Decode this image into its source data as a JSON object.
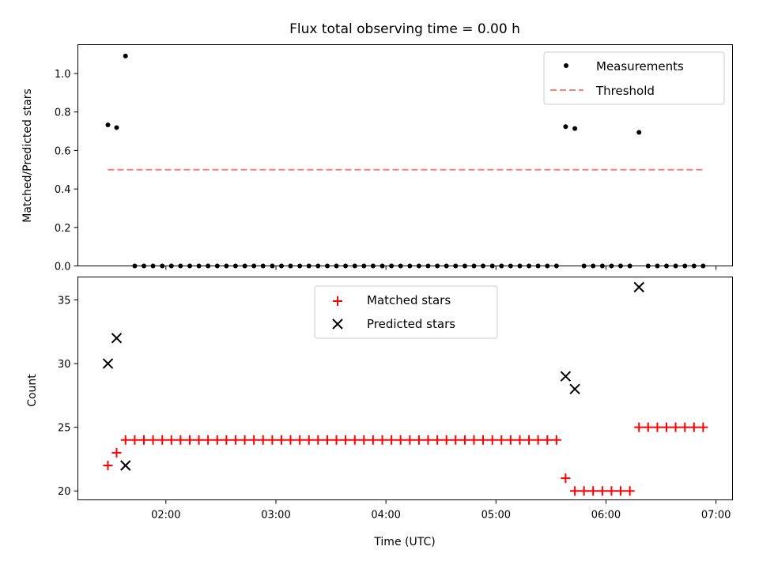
{
  "chart_data": [
    {
      "type": "scatter",
      "title": "Flux total observing time = 0.00 h",
      "xlabel": "",
      "ylabel": "Matched/Predicted stars",
      "xlim": [
        1.2,
        7.15
      ],
      "ylim": [
        0,
        1.15
      ],
      "yticks": [
        0.0,
        0.2,
        0.4,
        0.6,
        0.8,
        1.0
      ],
      "ytick_labels": [
        "0.0",
        "0.2",
        "0.4",
        "0.6",
        "0.8",
        "1.0"
      ],
      "xticks": [
        2,
        3,
        4,
        5,
        6,
        7
      ],
      "show_xtick_labels": false,
      "legend": {
        "placement": "top-right",
        "entries": [
          "Measurements",
          "Threshold"
        ]
      },
      "series": [
        {
          "name": "Measurements",
          "marker": "dot",
          "color": "#000000",
          "x": [
            1.473,
            1.552,
            1.633,
            1.717,
            1.8,
            1.883,
            1.967,
            2.05,
            2.133,
            2.217,
            2.3,
            2.383,
            2.467,
            2.55,
            2.633,
            2.717,
            2.8,
            2.883,
            2.967,
            3.05,
            3.133,
            3.217,
            3.3,
            3.383,
            3.467,
            3.55,
            3.633,
            3.717,
            3.8,
            3.883,
            3.967,
            4.05,
            4.133,
            4.217,
            4.3,
            4.383,
            4.467,
            4.55,
            4.633,
            4.717,
            4.8,
            4.883,
            4.967,
            5.05,
            5.133,
            5.217,
            5.3,
            5.383,
            5.467,
            5.55,
            5.633,
            5.717,
            5.8,
            5.883,
            5.967,
            6.05,
            6.133,
            6.217,
            6.3,
            6.383,
            6.467,
            6.55,
            6.633,
            6.717,
            6.8,
            6.883
          ],
          "y": [
            0.733,
            0.719,
            1.091,
            0,
            0,
            0,
            0,
            0,
            0,
            0,
            0,
            0,
            0,
            0,
            0,
            0,
            0,
            0,
            0,
            0,
            0,
            0,
            0,
            0,
            0,
            0,
            0,
            0,
            0,
            0,
            0,
            0,
            0,
            0,
            0,
            0,
            0,
            0,
            0,
            0,
            0,
            0,
            0,
            0,
            0,
            0,
            0,
            0,
            0,
            0,
            0.724,
            0.714,
            0,
            0,
            0,
            0,
            0,
            0,
            0.694,
            0,
            0,
            0,
            0,
            0,
            0,
            0
          ]
        },
        {
          "name": "Threshold",
          "marker": "dashed-line",
          "color": "#ff7f7f",
          "x": [
            1.473,
            6.883
          ],
          "y": [
            0.5,
            0.5
          ]
        }
      ]
    },
    {
      "type": "scatter",
      "title": "",
      "xlabel": "Time (UTC)",
      "ylabel": "Count",
      "xlim": [
        1.2,
        7.15
      ],
      "ylim": [
        19.3,
        36.8
      ],
      "yticks": [
        20,
        25,
        30,
        35
      ],
      "ytick_labels": [
        "20",
        "25",
        "30",
        "35"
      ],
      "xticks": [
        2,
        3,
        4,
        5,
        6,
        7
      ],
      "xtick_labels": [
        "02:00",
        "03:00",
        "04:00",
        "05:00",
        "06:00",
        "07:00"
      ],
      "legend": {
        "placement": "top-center",
        "entries": [
          "Matched stars",
          "Predicted stars"
        ]
      },
      "series": [
        {
          "name": "Matched stars",
          "marker": "plus",
          "color": "#ff0000",
          "x": [
            1.473,
            1.552,
            1.633,
            1.717,
            1.8,
            1.883,
            1.967,
            2.05,
            2.133,
            2.217,
            2.3,
            2.383,
            2.467,
            2.55,
            2.633,
            2.717,
            2.8,
            2.883,
            2.967,
            3.05,
            3.133,
            3.217,
            3.3,
            3.383,
            3.467,
            3.55,
            3.633,
            3.717,
            3.8,
            3.883,
            3.967,
            4.05,
            4.133,
            4.217,
            4.3,
            4.383,
            4.467,
            4.55,
            4.633,
            4.717,
            4.8,
            4.883,
            4.967,
            5.05,
            5.133,
            5.217,
            5.3,
            5.383,
            5.467,
            5.55,
            5.633,
            5.717,
            5.8,
            5.883,
            5.967,
            6.05,
            6.133,
            6.217,
            6.3,
            6.383,
            6.467,
            6.55,
            6.633,
            6.717,
            6.8,
            6.883
          ],
          "y": [
            22,
            23,
            24,
            24,
            24,
            24,
            24,
            24,
            24,
            24,
            24,
            24,
            24,
            24,
            24,
            24,
            24,
            24,
            24,
            24,
            24,
            24,
            24,
            24,
            24,
            24,
            24,
            24,
            24,
            24,
            24,
            24,
            24,
            24,
            24,
            24,
            24,
            24,
            24,
            24,
            24,
            24,
            24,
            24,
            24,
            24,
            24,
            24,
            24,
            24,
            21,
            20,
            20,
            20,
            20,
            20,
            20,
            20,
            25,
            25,
            25,
            25,
            25,
            25,
            25,
            25
          ]
        },
        {
          "name": "Predicted stars",
          "marker": "x",
          "color": "#000000",
          "x": [
            1.473,
            1.552,
            1.633,
            5.633,
            5.717,
            6.3
          ],
          "y": [
            30,
            32,
            22,
            29,
            28,
            36
          ]
        }
      ]
    }
  ]
}
